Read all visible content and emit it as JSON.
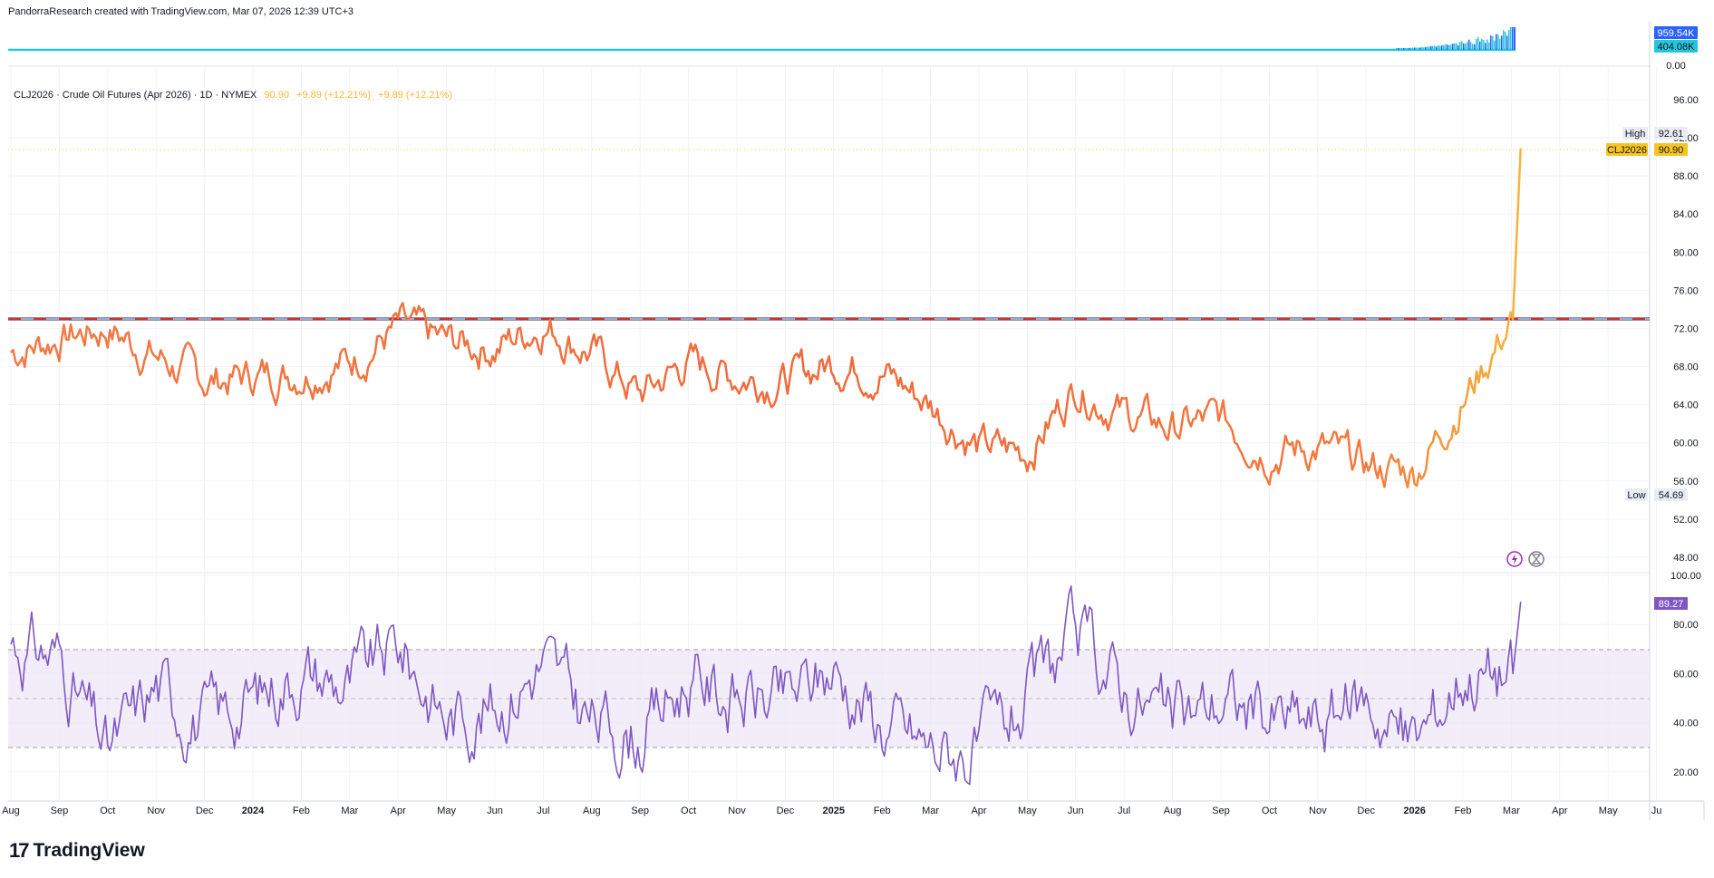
{
  "header": {
    "attribution": "PandorraResearch created with TradingView.com, Mar 07, 2026 12:39 UTC+3"
  },
  "brand": {
    "name": "TradingView"
  },
  "legend": {
    "symbol_line": "CLJ2026 · Crude Oil Futures (Apr 2026) · 1D · NYMEX",
    "last": "90.90",
    "change_a": "+9.89 (+12.21%)",
    "change_b": "+9.89 (+12.21%)"
  },
  "price_scale": {
    "ticks": [
      "96.00",
      "92.00",
      "88.00",
      "84.00",
      "80.00",
      "76.00",
      "72.00",
      "68.00",
      "64.00",
      "60.00",
      "56.00",
      "52.00",
      "48.00"
    ],
    "high_label": "High",
    "high_value": "92.61",
    "low_label": "Low",
    "low_value": "54.69",
    "symbol_tag": "CLJ2026",
    "symbol_value": "90.90"
  },
  "volume_scale": {
    "ticks": [
      "959.54K",
      "404.08K",
      "0.00"
    ]
  },
  "rsi_scale": {
    "ticks": [
      "100.00",
      "80.00",
      "60.00",
      "40.00",
      "20.00"
    ],
    "current": "89.27"
  },
  "time_axis": [
    "Aug",
    "Sep",
    "Oct",
    "Nov",
    "Dec",
    "2024",
    "Feb",
    "Mar",
    "Apr",
    "May",
    "Jun",
    "Jul",
    "Aug",
    "Sep",
    "Oct",
    "Nov",
    "Dec",
    "2025",
    "Feb",
    "Mar",
    "Apr",
    "May",
    "Jun",
    "Jul",
    "Aug",
    "Sep",
    "Oct",
    "Nov",
    "Dec",
    "2026",
    "Feb",
    "Mar",
    "Apr",
    "May",
    "Ju"
  ],
  "colors": {
    "price_line_start": "#f06a3b",
    "price_line_end": "#f5b53a",
    "rsi_line": "#7e57c2",
    "rsi_band": "#ede7f6",
    "resistance_red": "#d32f2f",
    "resistance_blue": "#9fa8da",
    "volume": "#26c6da",
    "volume_bar": "#2962ff",
    "tag_yellow": "#f7c523"
  },
  "chart_data": {
    "type": "line",
    "title": "CLJ2026 · Crude Oil Futures (Apr 2026) · 1D · NYMEX",
    "x_range": [
      "2023-08",
      "2026-03-07"
    ],
    "ylim": [
      46,
      98
    ],
    "series": [
      {
        "name": "CLJ2026",
        "x": [
          "2023-08",
          "2023-09",
          "2023-10",
          "2023-11",
          "2023-12",
          "2024-01",
          "2024-02",
          "2024-03",
          "2024-04",
          "2024-05",
          "2024-06",
          "2024-07",
          "2024-08",
          "2024-09",
          "2024-10",
          "2024-11",
          "2024-12",
          "2025-01",
          "2025-02",
          "2025-03",
          "2025-04",
          "2025-05",
          "2025-06",
          "2025-07",
          "2025-08",
          "2025-09",
          "2025-10",
          "2025-11",
          "2025-12",
          "2026-01",
          "2026-02",
          "2026-03-02",
          "2026-03-07"
        ],
        "values": [
          69.5,
          71,
          72,
          69,
          66.5,
          67,
          67.5,
          68.5,
          72,
          70.5,
          70,
          72.5,
          69.5,
          65,
          68.5,
          67,
          66.5,
          68.5,
          67.5,
          64,
          59.5,
          59,
          66,
          63,
          61.5,
          62.5,
          59,
          59.5,
          57.5,
          57,
          64.5,
          73,
          90.9
        ]
      }
    ],
    "resistance_level": 73.0,
    "rsi": {
      "ylim": [
        0,
        100
      ],
      "bands": [
        30,
        50,
        70
      ],
      "x": [
        "2023-08",
        "2023-09",
        "2023-10",
        "2023-11",
        "2023-12",
        "2024-01",
        "2024-02",
        "2024-03",
        "2024-04",
        "2024-05",
        "2024-06",
        "2024-07",
        "2024-08",
        "2024-09",
        "2024-10",
        "2024-11",
        "2024-12",
        "2025-01",
        "2025-02",
        "2025-03",
        "2025-04",
        "2025-05",
        "2025-06",
        "2025-07",
        "2025-08",
        "2025-09",
        "2025-10",
        "2025-11",
        "2025-12",
        "2026-01",
        "2026-02",
        "2026-03-02",
        "2026-03-07"
      ],
      "values": [
        73,
        67,
        27,
        55,
        40,
        50,
        62,
        55,
        72,
        42,
        47,
        65,
        40,
        35,
        58,
        50,
        48,
        62,
        40,
        30,
        28,
        48,
        75,
        55,
        40,
        50,
        42,
        40,
        50,
        31,
        62,
        60,
        89.27
      ]
    }
  }
}
